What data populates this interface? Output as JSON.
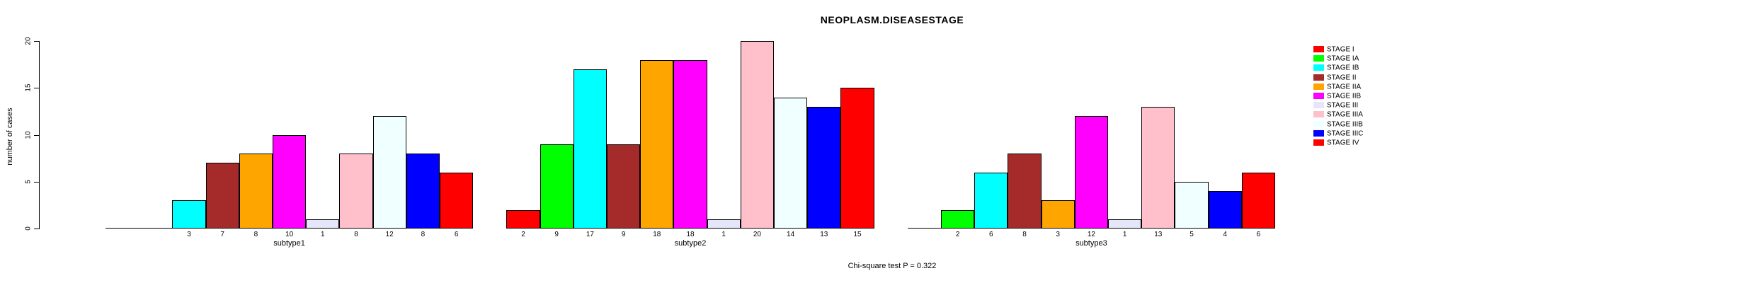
{
  "title": "NEOPLASM.DISEASESTAGE",
  "footnote": "Chi-square test P = 0.322",
  "chart_data": {
    "type": "bar",
    "title": "NEOPLASM.DISEASESTAGE",
    "xlabel": "",
    "ylabel": "number of cases",
    "ylim": [
      0,
      20
    ],
    "yticks": [
      0,
      5,
      10,
      15,
      20
    ],
    "grid": false,
    "legend_position": "right",
    "value_labels_shown": true,
    "zero_bars_drawn_as_line": true,
    "categories": [
      "subtype1",
      "subtype2",
      "subtype3"
    ],
    "series": [
      {
        "name": "STAGE I",
        "color": "#FF0000",
        "values": [
          0,
          2,
          0
        ]
      },
      {
        "name": "STAGE IA",
        "color": "#00FF00",
        "values": [
          0,
          9,
          2
        ]
      },
      {
        "name": "STAGE IB",
        "color": "#00FFFF",
        "values": [
          3,
          17,
          6
        ]
      },
      {
        "name": "STAGE II",
        "color": "#A52A2A",
        "values": [
          7,
          9,
          8
        ]
      },
      {
        "name": "STAGE IIA",
        "color": "#FFA500",
        "values": [
          8,
          18,
          3
        ]
      },
      {
        "name": "STAGE IIB",
        "color": "#FF00FF",
        "values": [
          10,
          18,
          12
        ]
      },
      {
        "name": "STAGE III",
        "color": "#E6E6FA",
        "values": [
          1,
          1,
          1
        ]
      },
      {
        "name": "STAGE IIIA",
        "color": "#FFC0CB",
        "values": [
          8,
          20,
          13
        ]
      },
      {
        "name": "STAGE IIIB",
        "color": "#F0FFFF",
        "values": [
          12,
          14,
          5
        ]
      },
      {
        "name": "STAGE IIIC",
        "color": "#0000FF",
        "values": [
          8,
          13,
          4
        ]
      },
      {
        "name": "STAGE IV",
        "color": "#FF0000",
        "values": [
          6,
          15,
          6
        ]
      }
    ]
  }
}
